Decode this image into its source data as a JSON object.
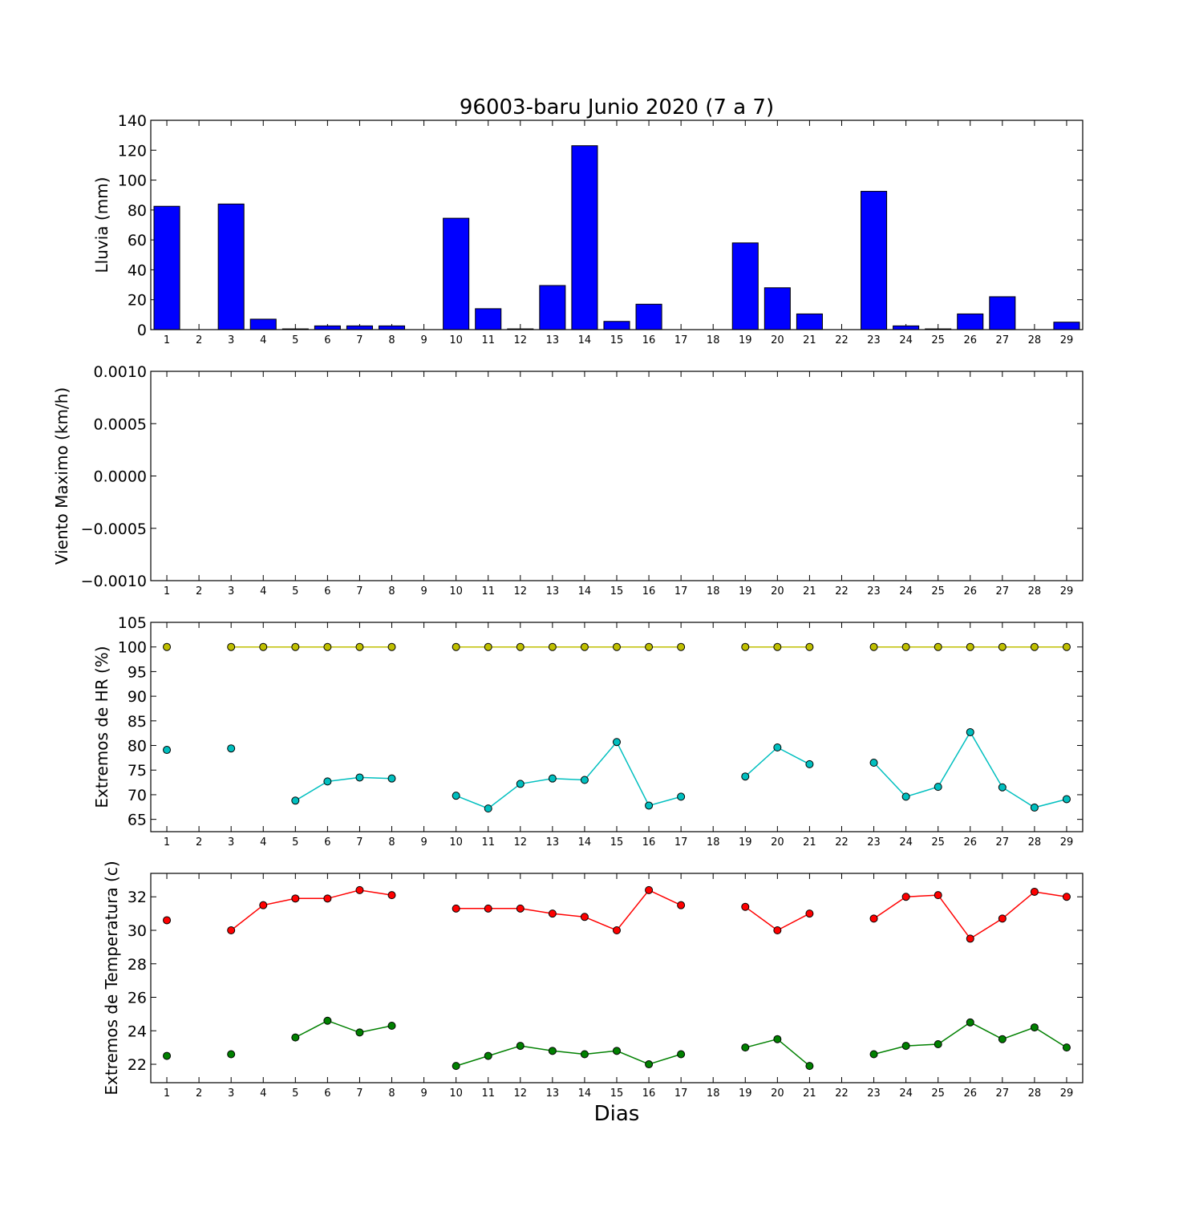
{
  "title": "96003-baru Junio 2020  (7 a 7)",
  "xlabel": "Dias",
  "colors": {
    "bars": "#0000ff",
    "hr_max": "#bfbf00",
    "hr_min": "#00bfbf",
    "t_max": "#ff0000",
    "t_min": "#008000"
  },
  "chart_data": [
    {
      "type": "bar",
      "ylabel": "Lluvia (mm)",
      "ylim": [
        0,
        140
      ],
      "yticks": [
        "0",
        "20",
        "40",
        "60",
        "80",
        "100",
        "120",
        "140"
      ],
      "x": [
        1,
        2,
        3,
        4,
        5,
        6,
        7,
        8,
        9,
        10,
        11,
        12,
        13,
        14,
        15,
        16,
        17,
        18,
        19,
        20,
        21,
        22,
        23,
        24,
        25,
        26,
        27,
        28,
        29
      ],
      "series": [
        {
          "values": [
            82.5,
            0,
            84,
            7,
            0.5,
            2.5,
            2.5,
            2.5,
            0,
            74.5,
            14,
            0.5,
            29.5,
            123,
            5.5,
            17,
            0,
            0,
            58,
            28,
            10.5,
            0,
            92.5,
            2.5,
            0.5,
            10.5,
            22,
            0,
            5
          ]
        }
      ]
    },
    {
      "type": "line",
      "ylabel": "Viento Maximo (km/h)",
      "ylim": [
        -0.001,
        0.001
      ],
      "yticks": [
        "−0.0010",
        "−0.0005",
        "0.0000",
        "0.0005",
        "0.0010"
      ],
      "x": [
        1,
        2,
        3,
        4,
        5,
        6,
        7,
        8,
        9,
        10,
        11,
        12,
        13,
        14,
        15,
        16,
        17,
        18,
        19,
        20,
        21,
        22,
        23,
        24,
        25,
        26,
        27,
        28,
        29
      ],
      "series": []
    },
    {
      "type": "line",
      "ylabel": "Extremos de HR (%)",
      "ylim": [
        62.5,
        105
      ],
      "yticks": [
        "65",
        "70",
        "75",
        "80",
        "85",
        "90",
        "95",
        "100",
        "105"
      ],
      "x": [
        1,
        2,
        3,
        4,
        5,
        6,
        7,
        8,
        9,
        10,
        11,
        12,
        13,
        14,
        15,
        16,
        17,
        18,
        19,
        20,
        21,
        22,
        23,
        24,
        25,
        26,
        27,
        28,
        29
      ],
      "series": [
        {
          "values": [
            100,
            null,
            100,
            100,
            100,
            100,
            100,
            100,
            null,
            100,
            100,
            100,
            100,
            100,
            100,
            100,
            100,
            null,
            100,
            100,
            100,
            null,
            100,
            100,
            100,
            100,
            100,
            100,
            100
          ]
        },
        {
          "values": [
            79.1,
            null,
            79.4,
            null,
            68.8,
            72.7,
            73.5,
            73.3,
            null,
            69.8,
            67.2,
            72.2,
            73.3,
            73,
            80.7,
            67.8,
            69.6,
            null,
            73.7,
            79.6,
            76.2,
            null,
            76.5,
            69.6,
            71.6,
            82.7,
            71.5,
            67.4,
            69.1
          ]
        }
      ]
    },
    {
      "type": "line",
      "ylabel": "Extremos de Temperatura (c)",
      "ylim": [
        20.9,
        33.4
      ],
      "yticks": [
        "22",
        "24",
        "26",
        "28",
        "30",
        "32"
      ],
      "x": [
        1,
        2,
        3,
        4,
        5,
        6,
        7,
        8,
        9,
        10,
        11,
        12,
        13,
        14,
        15,
        16,
        17,
        18,
        19,
        20,
        21,
        22,
        23,
        24,
        25,
        26,
        27,
        28,
        29
      ],
      "series": [
        {
          "values": [
            30.6,
            null,
            30,
            31.5,
            31.9,
            31.9,
            32.4,
            32.1,
            null,
            31.3,
            31.3,
            31.3,
            31,
            30.8,
            30,
            32.4,
            31.5,
            null,
            31.4,
            30,
            31,
            null,
            30.7,
            32,
            32.1,
            29.5,
            30.7,
            32.3,
            32
          ]
        },
        {
          "values": [
            22.5,
            null,
            22.6,
            null,
            23.6,
            24.6,
            23.9,
            24.3,
            null,
            21.9,
            22.5,
            23.1,
            22.8,
            22.6,
            22.8,
            22,
            22.6,
            null,
            23,
            23.5,
            21.9,
            null,
            22.6,
            23.1,
            23.2,
            24.5,
            23.5,
            24.2,
            23
          ]
        }
      ]
    }
  ]
}
